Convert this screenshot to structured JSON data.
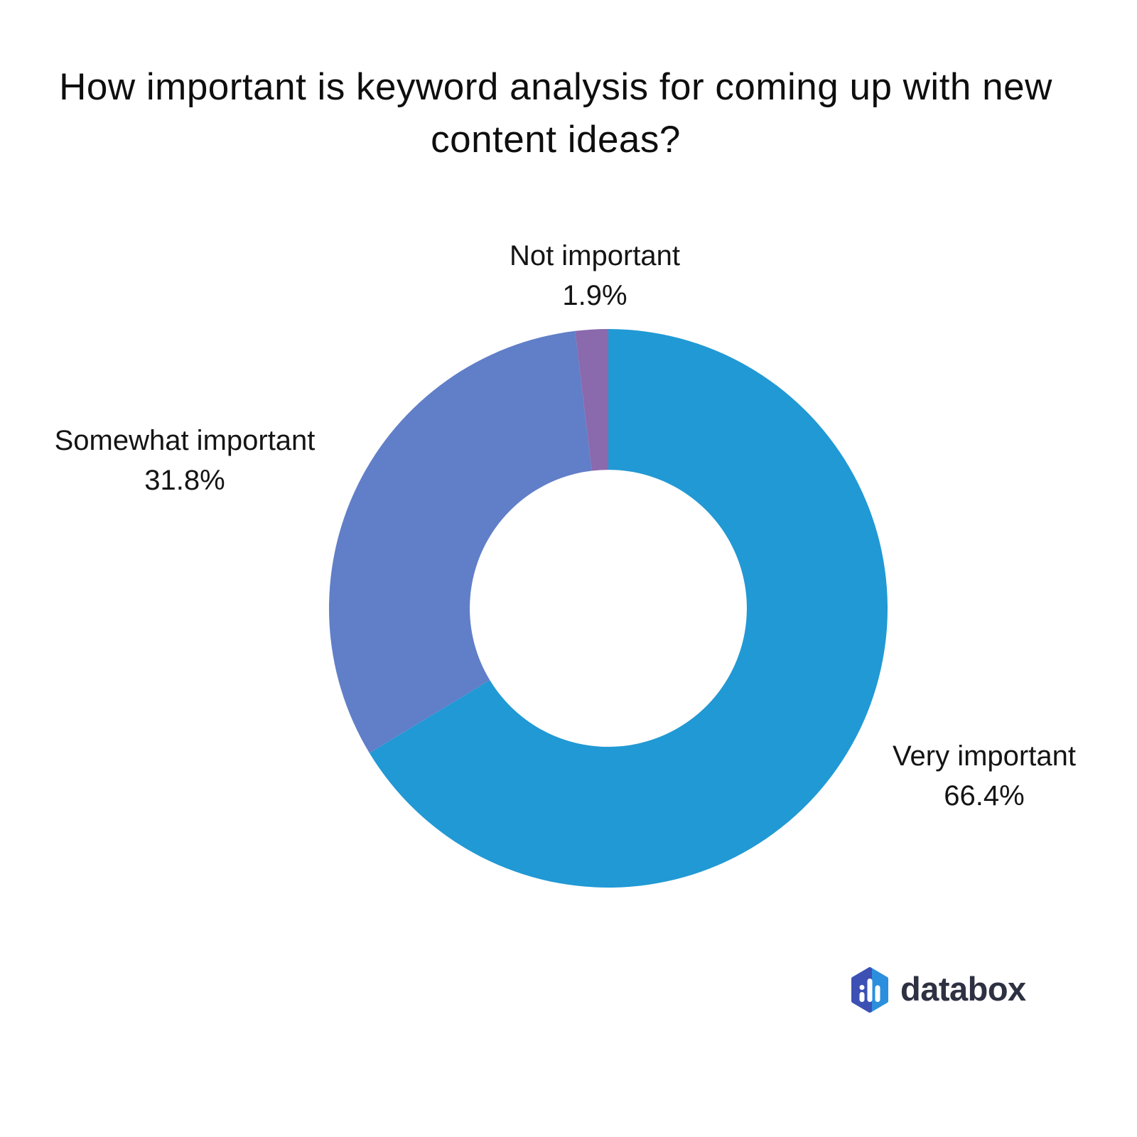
{
  "title": {
    "text": "How important is keyword analysis for coming up with new content ideas?"
  },
  "chart_data": {
    "type": "pie",
    "subtype": "donut",
    "title": "How important is keyword analysis for coming up with new content ideas?",
    "start_angle_deg": 0,
    "direction": "clockwise",
    "inner_radius_ratio": 0.496,
    "background": "#ffffff",
    "legend_position": "none",
    "segments": [
      {
        "label": "Very important",
        "value": 66.4,
        "display": "66.4%",
        "color": "#2199d4"
      },
      {
        "label": "Somewhat important",
        "value": 31.8,
        "display": "31.8%",
        "color": "#617ec8"
      },
      {
        "label": "Not important",
        "value": 1.9,
        "display": "1.9%",
        "color": "#8a69ad"
      }
    ]
  },
  "logo": {
    "text": "databox",
    "icon": "databox-hexagon-bar-chart-icon",
    "icon_color_left": "#3d51b4",
    "icon_color_right": "#2b8fdd",
    "bar_color": "#ffffff",
    "text_color": "#2e3142"
  }
}
